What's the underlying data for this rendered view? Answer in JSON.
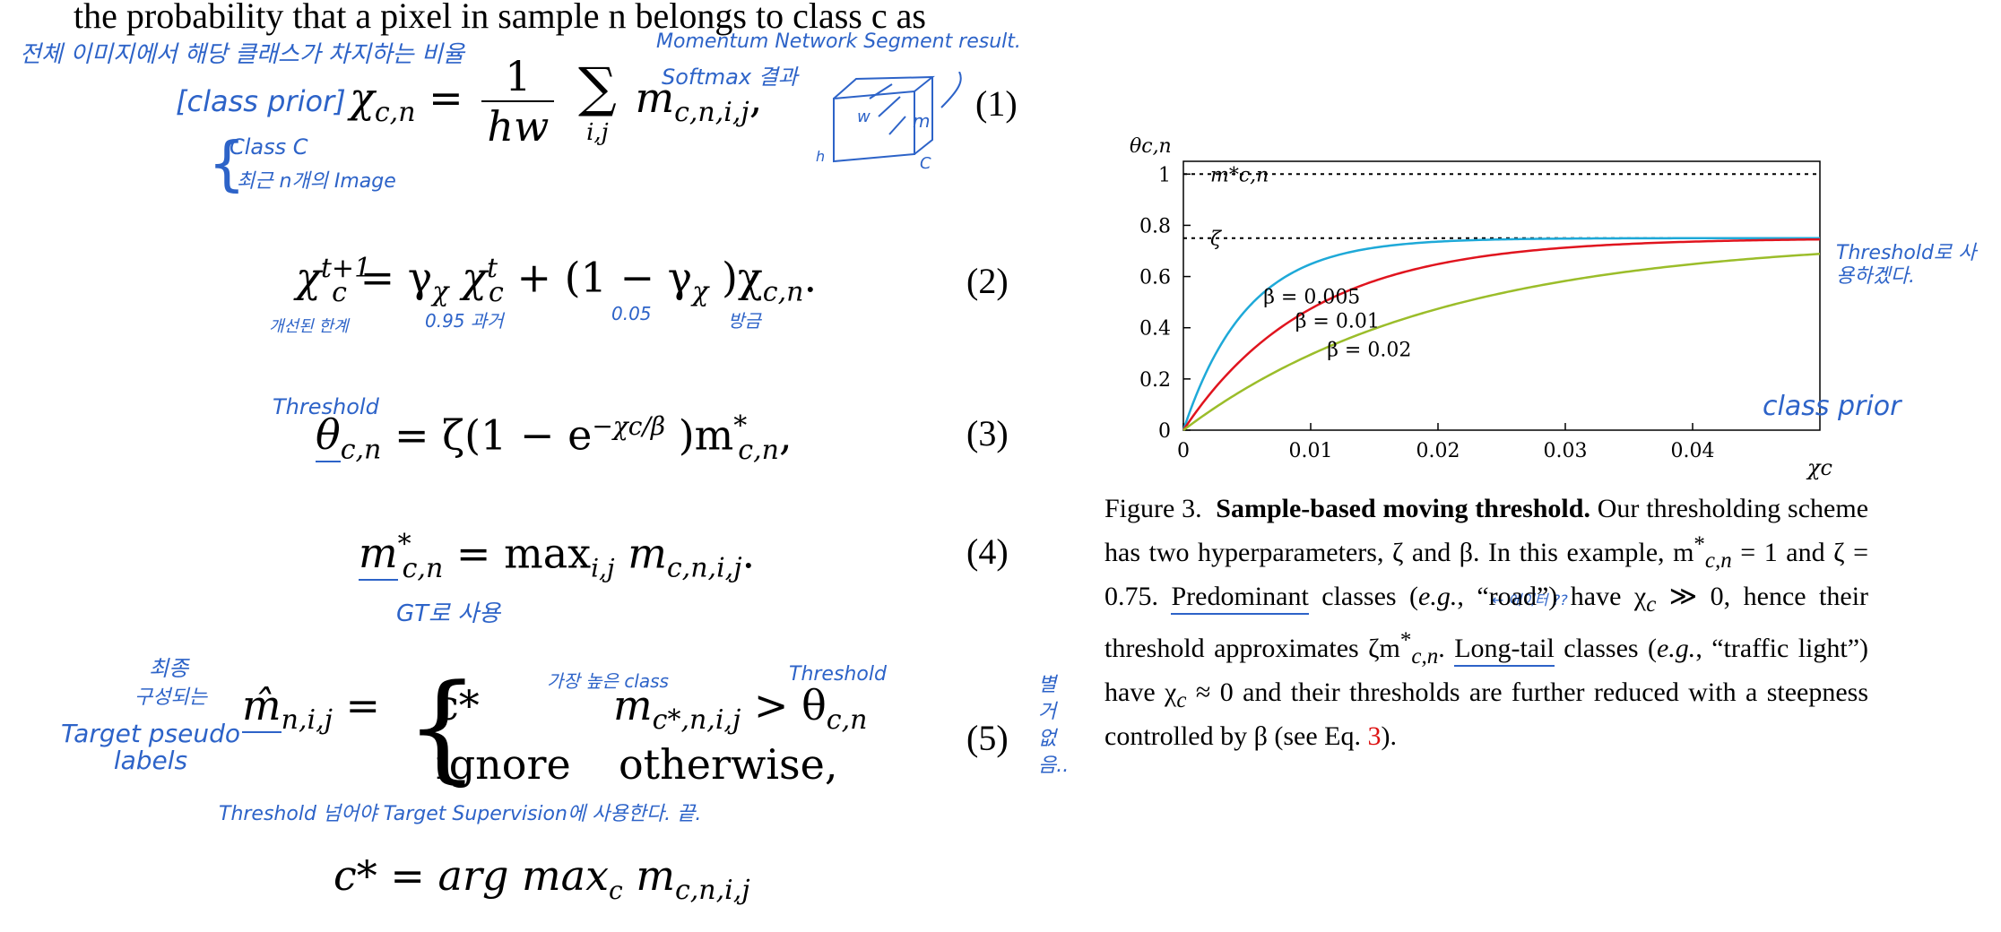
{
  "page": {
    "top_line": "the probability that a pixel in sample n belongs to class c as"
  },
  "equations": [
    {
      "id": "1",
      "lhs": "χ",
      "lhs_sub": "c,n",
      "frac_top": "1",
      "frac_bot": "hw",
      "sum": "∑",
      "sum_sub": "i,j",
      "term": "m",
      "term_sub": "c,n,i,j",
      "tail": ",",
      "number": "(1)"
    },
    {
      "id": "2",
      "lhs": "χ",
      "lhs_sup": "t+1",
      "lhs_sub": "c",
      "rhs_a": "= γ",
      "rhs_a_sub": "χ",
      "rhs_b": "χ",
      "rhs_b_sup": "t",
      "rhs_b_sub": "c",
      "rhs_c": " + (1 − γ",
      "rhs_c_sub": "χ",
      "rhs_d": ")χ",
      "rhs_d_sub": "c,n",
      "tail": ".",
      "number": "(2)"
    },
    {
      "id": "3",
      "text_a": "θ",
      "text_a_sub": "c,n",
      "text_b": " = ζ(1 − e",
      "text_b_sup": "−χc/β",
      "text_c": ")m",
      "text_c_sup": "*",
      "text_c_sub": "c,n",
      "tail": ",",
      "number": "(3)"
    },
    {
      "id": "4",
      "text_a": "m",
      "text_a_sup": "*",
      "text_a_sub": "c,n",
      "text_b": " = max",
      "text_b_sub": "i,j",
      "text_c": " m",
      "text_c_sub": "c,n,i,j",
      "tail": ".",
      "number": "(4)"
    },
    {
      "id": "5",
      "lhs": "m̂",
      "lhs_sub": "n,i,j",
      "case1_val": "c*",
      "case1_cond_a": "m",
      "case1_cond_sub": "c*,n,i,j",
      "case1_cond_b": " > θ",
      "case1_cond_b_sub": "c,n",
      "case2_val": "ignore",
      "case2_cond": "otherwise,",
      "number": "(5)"
    }
  ],
  "last_line": {
    "a": "c* = arg max",
    "a_sub": "c",
    "b": " m",
    "b_sub": "c,n,i,j"
  },
  "annotations": {
    "eq1_top": "전체 이미지에서 해당 클래스가 차지하는 비율",
    "eq1_class_prior": "[class prior]",
    "eq1_class_c": "Class C",
    "eq1_image": "최근 n개의 Image",
    "eq1_momentum": "Momentum Network Segment result.",
    "eq1_softmax": "Softmax 결과",
    "eq1_cube_w": "w",
    "eq1_cube_h": "h",
    "eq1_cube_c": "C",
    "eq1_cube_m": "m",
    "eq2_left": "개선된 한계",
    "eq2_mid": "0.95 과거",
    "eq2_mid2": "0.05",
    "eq2_right": "방금",
    "eq3_threshold": "Threshold",
    "eq4_gt": "GT로 사용",
    "eq5_final": "최종",
    "eq5_formed": "구성되는",
    "eq5_target": "Target pseudo labels",
    "eq5_highest": "가장 높은 class",
    "eq5_threshold": "Threshold",
    "eq5_bottom": "Threshold 넘어야 Target Supervision에 사용한다. 끝.",
    "eq5_side": "별 거 없음..",
    "fig_threshold": "Threshold로 사용하겠다.",
    "fig_class_prior": "class prior",
    "caption_annot": "← 에이터 ??"
  },
  "caption": {
    "label": "Figure 3.",
    "bold": "Sample-based moving threshold.",
    "p1": " Our thresholding scheme has two hyperparameters, ζ and β.  In this example, m",
    "p1_sup": "*",
    "p1_sub": "c,n",
    "p2": " = 1 and ζ = 0.75. ",
    "p2_ul": "Predominant",
    "p3": " classes (",
    "eg": "e.g.",
    "p4": ", “road”) have χ",
    "p4_sub": "c",
    "p5": " ≫ 0, hence their threshold approximates ζm",
    "p5_sup": "*",
    "p5_sub": "c,n",
    "p6": ". ",
    "p6_ul": "Long-tail",
    "p7": " classes (",
    "p8": ", “traffic light”) have χ",
    "p8_sub": "c",
    "p9": " ≈ 0 and their thresholds are further reduced with a steepness controlled by β (see Eq. ",
    "ref": "3",
    "p10": ")."
  },
  "chart_data": {
    "type": "line",
    "ylabel": "θc,n",
    "xlabel": "χc",
    "xlim": [
      0,
      0.05
    ],
    "ylim": [
      0,
      1.05
    ],
    "xticks": [
      "0",
      "0.01",
      "0.02",
      "0.03",
      "0.04"
    ],
    "xtick_values": [
      0,
      0.01,
      0.02,
      0.03,
      0.04
    ],
    "yticks": [
      "0",
      "0.2",
      "0.4",
      "0.6",
      "0.8",
      "1"
    ],
    "ytick_values": [
      0,
      0.2,
      0.4,
      0.6,
      0.8,
      1
    ],
    "hlines": [
      {
        "label": "m*c,n",
        "y": 1.0
      },
      {
        "label": "ζ",
        "y": 0.75
      }
    ],
    "zeta": 0.75,
    "series": [
      {
        "name": "β = 0.005",
        "beta": 0.005,
        "color": "#1ea9d8"
      },
      {
        "name": "β = 0.01",
        "beta": 0.01,
        "color": "#e0141e"
      },
      {
        "name": "β = 0.02",
        "beta": 0.02,
        "color": "#9bbd2a"
      }
    ]
  }
}
